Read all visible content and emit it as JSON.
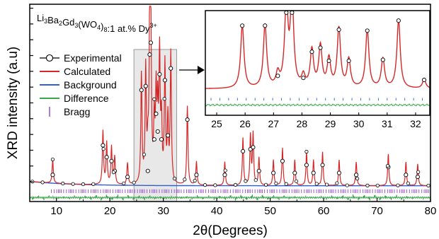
{
  "chart_data": {
    "type": "line",
    "title_parts": [
      {
        "text": "Li",
        "style": "normal"
      },
      {
        "text": "3",
        "style": "sub"
      },
      {
        "text": "Ba",
        "style": "normal"
      },
      {
        "text": "2",
        "style": "sub"
      },
      {
        "text": "Gd",
        "style": "normal"
      },
      {
        "text": "3",
        "style": "sub"
      },
      {
        "text": "(WO",
        "style": "normal"
      },
      {
        "text": "4",
        "style": "sub"
      },
      {
        "text": ")",
        "style": "normal"
      },
      {
        "text": "8",
        "style": "sub"
      },
      {
        "text": ":1 at.% Dy",
        "style": "normal"
      },
      {
        "text": "3+",
        "style": "sup"
      }
    ],
    "xlabel": "2θ(Degrees)",
    "ylabel": "XRD intensity (a.u)",
    "xlim": [
      5,
      80
    ],
    "ylim": [
      0,
      100
    ],
    "xticks": [
      10,
      20,
      30,
      40,
      50,
      60,
      70,
      80
    ],
    "legend": {
      "placement": "left",
      "entries": [
        {
          "name": "Experimental",
          "color": "#000000",
          "marker": "open-circle"
        },
        {
          "name": "Calculated",
          "color": "#d62728",
          "marker": "line"
        },
        {
          "name": "Background",
          "color": "#2f5fd0",
          "marker": "line"
        },
        {
          "name": "Difference",
          "color": "#3aa84a",
          "marker": "line"
        },
        {
          "name": "Bragg",
          "color": "#9b59d0",
          "marker": "vbar"
        }
      ]
    },
    "baseline": 8,
    "peaks": [
      {
        "x": 9.3,
        "y": 12
      },
      {
        "x": 18.7,
        "y": 27
      },
      {
        "x": 19.4,
        "y": 21
      },
      {
        "x": 20.3,
        "y": 19
      },
      {
        "x": 20.9,
        "y": 14
      },
      {
        "x": 23.3,
        "y": 11
      },
      {
        "x": 25.9,
        "y": 55
      },
      {
        "x": 26.7,
        "y": 57
      },
      {
        "x": 27.1,
        "y": 14
      },
      {
        "x": 27.45,
        "y": 73
      },
      {
        "x": 27.65,
        "y": 79
      },
      {
        "x": 28.3,
        "y": 30
      },
      {
        "x": 28.65,
        "y": 43
      },
      {
        "x": 28.95,
        "y": 34
      },
      {
        "x": 29.3,
        "y": 63
      },
      {
        "x": 29.65,
        "y": 30
      },
      {
        "x": 30.3,
        "y": 60
      },
      {
        "x": 30.85,
        "y": 32
      },
      {
        "x": 31.4,
        "y": 66
      },
      {
        "x": 34.5,
        "y": 40
      },
      {
        "x": 36.2,
        "y": 12
      },
      {
        "x": 41.5,
        "y": 12
      },
      {
        "x": 44.9,
        "y": 24
      },
      {
        "x": 46.3,
        "y": 25
      },
      {
        "x": 46.8,
        "y": 26
      },
      {
        "x": 47.9,
        "y": 14
      },
      {
        "x": 50.6,
        "y": 13
      },
      {
        "x": 52.3,
        "y": 19
      },
      {
        "x": 54.6,
        "y": 13
      },
      {
        "x": 56.8,
        "y": 17
      },
      {
        "x": 58.1,
        "y": 13
      },
      {
        "x": 59.8,
        "y": 17
      },
      {
        "x": 62.9,
        "y": 13
      },
      {
        "x": 66.1,
        "y": 12
      },
      {
        "x": 72.1,
        "y": 16
      },
      {
        "x": 75.4,
        "y": 12
      },
      {
        "x": 77.6,
        "y": 11
      }
    ],
    "highlight_range": [
      24.5,
      32.5
    ],
    "inset": {
      "xlim": [
        24.6,
        32.5
      ],
      "ylim": [
        0,
        100
      ],
      "xticks": [
        25,
        26,
        27,
        28,
        29,
        30,
        31,
        32
      ],
      "peaks": [
        {
          "x": 25.9,
          "y": 63
        },
        {
          "x": 26.7,
          "y": 63
        },
        {
          "x": 27.15,
          "y": 13
        },
        {
          "x": 27.45,
          "y": 83
        },
        {
          "x": 27.65,
          "y": 89
        },
        {
          "x": 28.05,
          "y": 11
        },
        {
          "x": 28.35,
          "y": 37
        },
        {
          "x": 28.65,
          "y": 41
        },
        {
          "x": 28.95,
          "y": 28
        },
        {
          "x": 29.3,
          "y": 59
        },
        {
          "x": 29.65,
          "y": 28
        },
        {
          "x": 30.3,
          "y": 58
        },
        {
          "x": 30.85,
          "y": 29
        },
        {
          "x": 31.4,
          "y": 68
        },
        {
          "x": 32.3,
          "y": 9
        }
      ]
    }
  }
}
